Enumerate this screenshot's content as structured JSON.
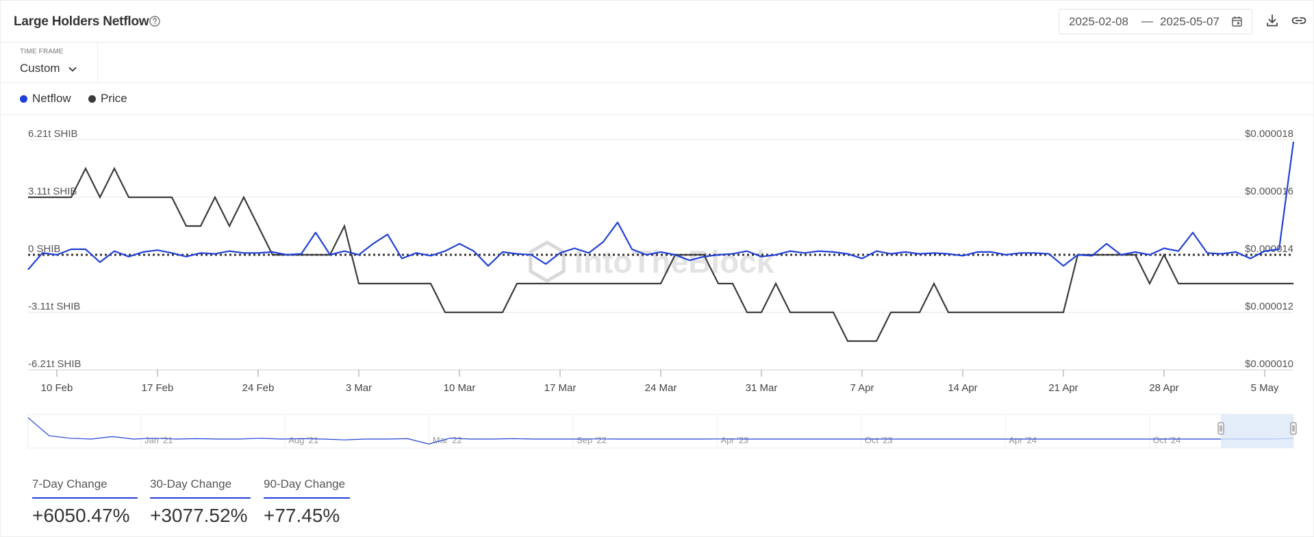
{
  "header": {
    "title": "Large Holders Netflow",
    "date_from": "2025-02-08",
    "date_separator": "—",
    "date_to": "2025-05-07"
  },
  "timeframe": {
    "label": "TIME FRAME",
    "value": "Custom"
  },
  "legend": [
    {
      "label": "Netflow",
      "color": "#1f3fd6"
    },
    {
      "label": "Price",
      "color": "#3a3a3a"
    }
  ],
  "colors": {
    "netflow": "#1f3fd6",
    "price": "#3a3a3a",
    "grid": "#e6e6e6",
    "navigator_selection": "#dbe8f8"
  },
  "watermark": "IntoTheBlock",
  "chart_data": {
    "type": "line",
    "x_start": "2025-02-08",
    "x_end": "2025-05-07",
    "xticks": [
      {
        "label": "10 Feb",
        "date": "2025-02-10"
      },
      {
        "label": "17 Feb",
        "date": "2025-02-17"
      },
      {
        "label": "24 Feb",
        "date": "2025-02-24"
      },
      {
        "label": "3 Mar",
        "date": "2025-03-03"
      },
      {
        "label": "10 Mar",
        "date": "2025-03-10"
      },
      {
        "label": "17 Mar",
        "date": "2025-03-17"
      },
      {
        "label": "24 Mar",
        "date": "2025-03-24"
      },
      {
        "label": "31 Mar",
        "date": "2025-03-31"
      },
      {
        "label": "7 Apr",
        "date": "2025-04-07"
      },
      {
        "label": "14 Apr",
        "date": "2025-04-14"
      },
      {
        "label": "21 Apr",
        "date": "2025-04-21"
      },
      {
        "label": "28 Apr",
        "date": "2025-04-28"
      },
      {
        "label": "5 May",
        "date": "2025-05-05"
      }
    ],
    "y_left": {
      "unit": "t SHIB",
      "range": [
        -6.21,
        6.21
      ],
      "ticks": [
        {
          "value": 6.21,
          "label": "6.21t SHIB"
        },
        {
          "value": 3.11,
          "label": "3.11t SHIB"
        },
        {
          "value": 0,
          "label": "0 SHIB"
        },
        {
          "value": -3.11,
          "label": "-3.11t SHIB"
        },
        {
          "value": -6.21,
          "label": "-6.21t SHIB"
        }
      ]
    },
    "y_right": {
      "unit": "USD",
      "range": [
        1e-05,
        1.8e-05
      ],
      "ticks": [
        {
          "value": 1.8e-05,
          "label": "$0.000018"
        },
        {
          "value": 1.6e-05,
          "label": "$0.000016"
        },
        {
          "value": 1.4e-05,
          "label": "$0.000014"
        },
        {
          "value": 1.2e-05,
          "label": "$0.000012"
        },
        {
          "value": 1e-05,
          "label": "$0.000010"
        }
      ]
    },
    "zero_line": "dotted",
    "series": [
      {
        "name": "Netflow",
        "axis": "left",
        "points": [
          [
            "2025-02-08",
            -0.8
          ],
          [
            "2025-02-09",
            0.1
          ],
          [
            "2025-02-10",
            0.0
          ],
          [
            "2025-02-11",
            0.3
          ],
          [
            "2025-02-12",
            0.3
          ],
          [
            "2025-02-13",
            -0.4
          ],
          [
            "2025-02-14",
            0.2
          ],
          [
            "2025-02-15",
            -0.1
          ],
          [
            "2025-02-16",
            0.15
          ],
          [
            "2025-02-17",
            0.25
          ],
          [
            "2025-02-18",
            0.1
          ],
          [
            "2025-02-19",
            -0.1
          ],
          [
            "2025-02-20",
            0.1
          ],
          [
            "2025-02-21",
            0.05
          ],
          [
            "2025-02-22",
            0.2
          ],
          [
            "2025-02-23",
            0.1
          ],
          [
            "2025-02-24",
            0.1
          ],
          [
            "2025-02-25",
            0.15
          ],
          [
            "2025-02-26",
            0.0
          ],
          [
            "2025-02-27",
            0.05
          ],
          [
            "2025-02-28",
            1.2
          ],
          [
            "2025-03-01",
            0.0
          ],
          [
            "2025-03-02",
            0.2
          ],
          [
            "2025-03-03",
            0.0
          ],
          [
            "2025-03-04",
            0.6
          ],
          [
            "2025-03-05",
            1.1
          ],
          [
            "2025-03-06",
            -0.2
          ],
          [
            "2025-03-07",
            0.1
          ],
          [
            "2025-03-08",
            -0.05
          ],
          [
            "2025-03-09",
            0.2
          ],
          [
            "2025-03-10",
            0.6
          ],
          [
            "2025-03-11",
            0.2
          ],
          [
            "2025-03-12",
            -0.6
          ],
          [
            "2025-03-13",
            0.15
          ],
          [
            "2025-03-14",
            0.05
          ],
          [
            "2025-03-15",
            0.0
          ],
          [
            "2025-03-16",
            -0.5
          ],
          [
            "2025-03-17",
            0.1
          ],
          [
            "2025-03-18",
            0.35
          ],
          [
            "2025-03-19",
            0.1
          ],
          [
            "2025-03-20",
            0.7
          ],
          [
            "2025-03-21",
            1.75
          ],
          [
            "2025-03-22",
            0.3
          ],
          [
            "2025-03-23",
            0.0
          ],
          [
            "2025-03-24",
            0.15
          ],
          [
            "2025-03-25",
            0.0
          ],
          [
            "2025-03-26",
            -0.3
          ],
          [
            "2025-03-27",
            -0.1
          ],
          [
            "2025-03-28",
            0.0
          ],
          [
            "2025-03-29",
            0.05
          ],
          [
            "2025-03-30",
            0.2
          ],
          [
            "2025-03-31",
            -0.1
          ],
          [
            "2025-04-01",
            0.0
          ],
          [
            "2025-04-02",
            0.2
          ],
          [
            "2025-04-03",
            0.1
          ],
          [
            "2025-04-04",
            0.2
          ],
          [
            "2025-04-05",
            0.15
          ],
          [
            "2025-04-06",
            0.05
          ],
          [
            "2025-04-07",
            -0.2
          ],
          [
            "2025-04-08",
            0.2
          ],
          [
            "2025-04-09",
            0.05
          ],
          [
            "2025-04-10",
            0.15
          ],
          [
            "2025-04-11",
            0.05
          ],
          [
            "2025-04-12",
            0.1
          ],
          [
            "2025-04-13",
            0.05
          ],
          [
            "2025-04-14",
            -0.05
          ],
          [
            "2025-04-15",
            0.15
          ],
          [
            "2025-04-16",
            0.15
          ],
          [
            "2025-04-17",
            0.0
          ],
          [
            "2025-04-18",
            0.1
          ],
          [
            "2025-04-19",
            0.1
          ],
          [
            "2025-04-20",
            0.05
          ],
          [
            "2025-04-21",
            -0.6
          ],
          [
            "2025-04-22",
            0.0
          ],
          [
            "2025-04-23",
            -0.05
          ],
          [
            "2025-04-24",
            0.6
          ],
          [
            "2025-04-25",
            0.0
          ],
          [
            "2025-04-26",
            0.15
          ],
          [
            "2025-04-27",
            0.0
          ],
          [
            "2025-04-28",
            0.35
          ],
          [
            "2025-04-29",
            0.2
          ],
          [
            "2025-04-30",
            1.2
          ],
          [
            "2025-05-01",
            0.1
          ],
          [
            "2025-05-02",
            0.05
          ],
          [
            "2025-05-03",
            0.15
          ],
          [
            "2025-05-04",
            -0.2
          ],
          [
            "2025-05-05",
            0.2
          ],
          [
            "2025-05-06",
            0.3
          ],
          [
            "2025-05-07",
            6.1
          ]
        ]
      },
      {
        "name": "Price",
        "axis": "right",
        "points": [
          [
            "2025-02-08",
            1.6e-05
          ],
          [
            "2025-02-11",
            1.6e-05
          ],
          [
            "2025-02-12",
            1.7e-05
          ],
          [
            "2025-02-13",
            1.6e-05
          ],
          [
            "2025-02-14",
            1.7e-05
          ],
          [
            "2025-02-15",
            1.6e-05
          ],
          [
            "2025-02-18",
            1.6e-05
          ],
          [
            "2025-02-19",
            1.5e-05
          ],
          [
            "2025-02-20",
            1.5e-05
          ],
          [
            "2025-02-21",
            1.6e-05
          ],
          [
            "2025-02-22",
            1.5e-05
          ],
          [
            "2025-02-23",
            1.6e-05
          ],
          [
            "2025-02-25",
            1.4e-05
          ],
          [
            "2025-03-01",
            1.4e-05
          ],
          [
            "2025-03-02",
            1.5e-05
          ],
          [
            "2025-03-03",
            1.3e-05
          ],
          [
            "2025-03-08",
            1.3e-05
          ],
          [
            "2025-03-09",
            1.2e-05
          ],
          [
            "2025-03-13",
            1.2e-05
          ],
          [
            "2025-03-14",
            1.3e-05
          ],
          [
            "2025-03-24",
            1.3e-05
          ],
          [
            "2025-03-25",
            1.4e-05
          ],
          [
            "2025-03-27",
            1.4e-05
          ],
          [
            "2025-03-28",
            1.3e-05
          ],
          [
            "2025-03-29",
            1.3e-05
          ],
          [
            "2025-03-30",
            1.2e-05
          ],
          [
            "2025-03-31",
            1.2e-05
          ],
          [
            "2025-04-01",
            1.3e-05
          ],
          [
            "2025-04-02",
            1.2e-05
          ],
          [
            "2025-04-05",
            1.2e-05
          ],
          [
            "2025-04-06",
            1.1e-05
          ],
          [
            "2025-04-08",
            1.1e-05
          ],
          [
            "2025-04-09",
            1.2e-05
          ],
          [
            "2025-04-11",
            1.2e-05
          ],
          [
            "2025-04-12",
            1.3e-05
          ],
          [
            "2025-04-13",
            1.2e-05
          ],
          [
            "2025-04-21",
            1.2e-05
          ],
          [
            "2025-04-22",
            1.4e-05
          ],
          [
            "2025-04-26",
            1.4e-05
          ],
          [
            "2025-04-27",
            1.3e-05
          ],
          [
            "2025-04-28",
            1.4e-05
          ],
          [
            "2025-04-29",
            1.3e-05
          ],
          [
            "2025-05-07",
            1.3e-05
          ]
        ]
      }
    ],
    "navigator": {
      "labels": [
        "Jan '21",
        "Aug '21",
        "Mar '22",
        "Sep '22",
        "Apr '23",
        "Oct '23",
        "Apr '24",
        "Oct '24"
      ],
      "values": [
        2.6,
        0.4,
        0.1,
        0.0,
        0.3,
        0.0,
        0.1,
        0.0,
        0.05,
        0.0,
        0.0,
        0.1,
        0.0,
        0.05,
        0.0,
        -0.1,
        0.0,
        0.0,
        0.05,
        -0.6,
        0.1,
        0.0,
        0.0,
        0.05,
        0.0,
        0.0,
        0.0,
        0.02,
        0.0,
        0.0,
        0.0,
        0.0,
        0.0,
        0.02,
        0.0,
        0.0,
        0.0,
        0.0,
        0.0,
        0.0,
        0.0,
        0.0,
        0.0,
        0.0,
        0.0,
        0.0,
        0.0,
        0.0,
        0.0,
        0.0,
        0.0,
        0.0,
        0.0,
        0.0,
        0.0,
        0.0,
        0.0,
        0.0,
        0.0,
        0.0,
        0.1
      ]
    }
  },
  "stats": [
    {
      "label": "7-Day Change",
      "value": "+6050.47%"
    },
    {
      "label": "30-Day Change",
      "value": "+3077.52%"
    },
    {
      "label": "90-Day Change",
      "value": "+77.45%"
    }
  ]
}
